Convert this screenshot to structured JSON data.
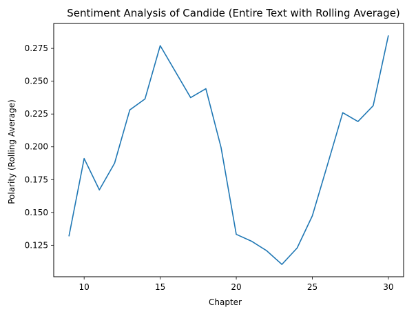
{
  "chart_data": {
    "type": "line",
    "title": "Sentiment Analysis of Candide (Entire Text with Rolling Average)",
    "xlabel": "Chapter",
    "ylabel": "Polarity (Rolling Average)",
    "xlim": [
      8,
      31
    ],
    "ylim": [
      0.101,
      0.294
    ],
    "x_ticks": [
      10,
      15,
      20,
      25,
      30
    ],
    "y_ticks": [
      0.125,
      0.15,
      0.175,
      0.2,
      0.225,
      0.25,
      0.275
    ],
    "x_tick_labels": [
      "10",
      "15",
      "20",
      "25",
      "30"
    ],
    "y_tick_labels": [
      "0.125",
      "0.150",
      "0.175",
      "0.200",
      "0.225",
      "0.250",
      "0.275"
    ],
    "grid": false,
    "series": [
      {
        "color": "#1f77b4",
        "x": [
          9,
          10,
          11,
          12,
          13,
          14,
          15,
          16,
          17,
          18,
          19,
          20,
          21,
          22,
          23,
          24,
          25,
          26,
          27,
          28,
          29,
          30
        ],
        "y": [
          0.1318,
          0.1911,
          0.1672,
          0.1875,
          0.2281,
          0.2365,
          0.2771,
          0.2573,
          0.2375,
          0.2443,
          0.1995,
          0.1333,
          0.1281,
          0.1208,
          0.1104,
          0.1229,
          0.1474,
          0.1865,
          0.226,
          0.2193,
          0.2313,
          0.2849
        ]
      }
    ]
  }
}
